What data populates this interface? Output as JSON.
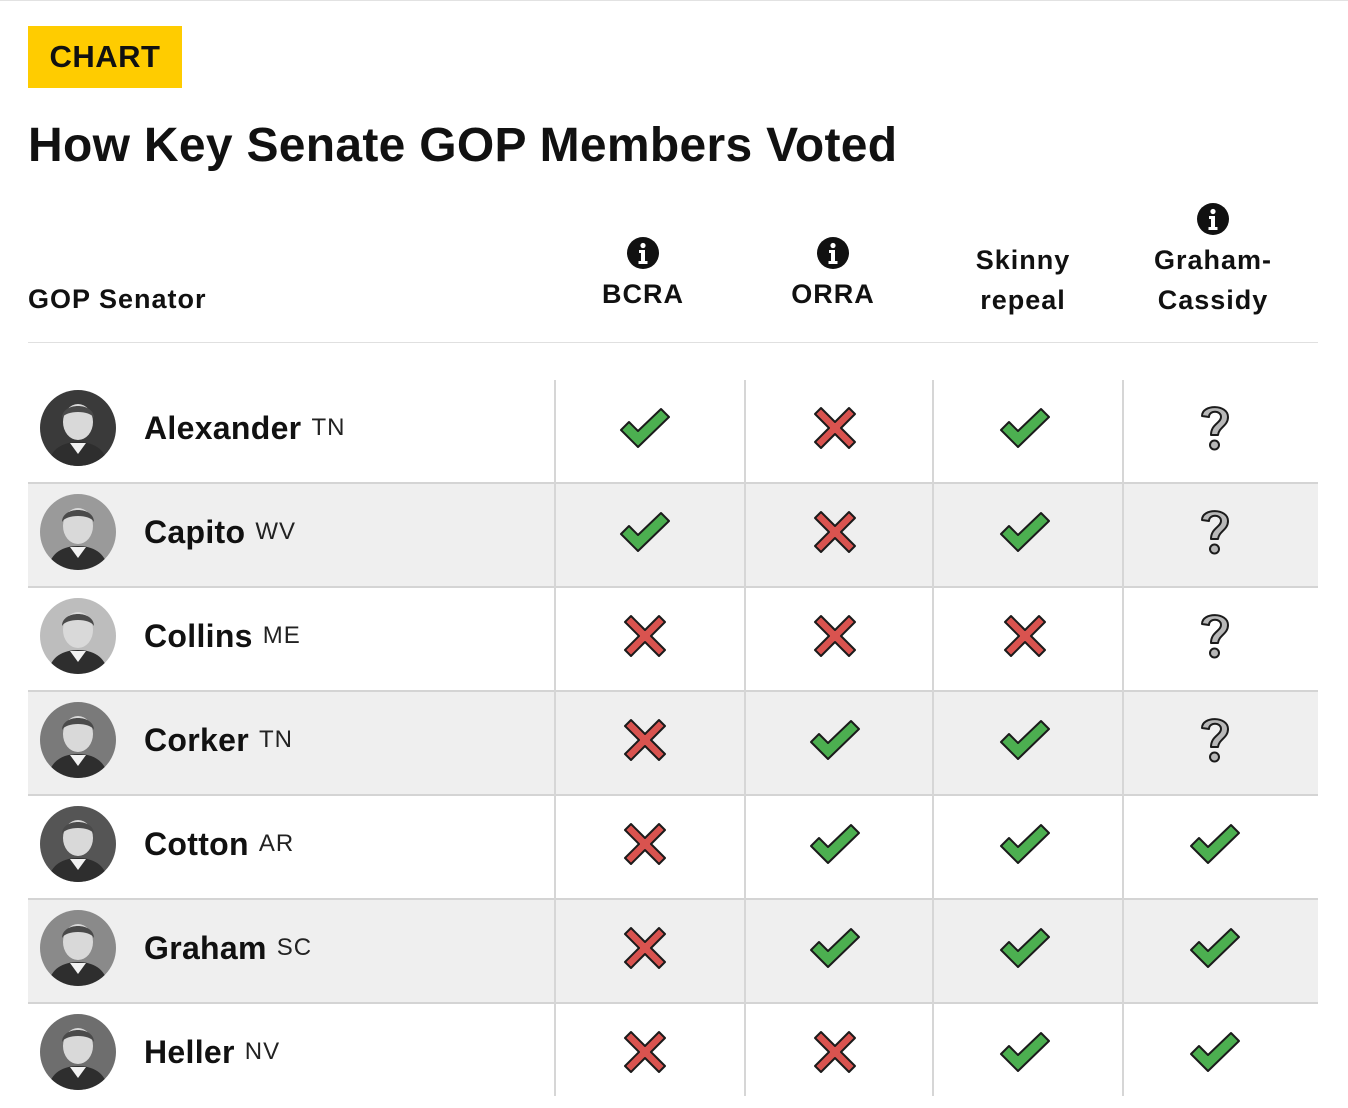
{
  "badge": "CHART",
  "title": "How Key Senate GOP Members Voted",
  "header": {
    "senator": "GOP Senator",
    "columns": [
      {
        "line1": "",
        "line2": "BCRA",
        "info": true
      },
      {
        "line1": "",
        "line2": "ORRA",
        "info": true
      },
      {
        "line1": "Skinny",
        "line2": "repeal",
        "info": false
      },
      {
        "line1": "Graham-",
        "line2": "Cassidy",
        "info": true
      }
    ]
  },
  "chart_data": {
    "type": "table",
    "title": "How Key Senate GOP Members Voted",
    "columns": [
      "GOP Senator",
      "BCRA",
      "ORRA",
      "Skinny repeal",
      "Graham-Cassidy"
    ],
    "legend_symbols": {
      "yes": "check",
      "no": "cross",
      "unknown": "question"
    },
    "rows": [
      {
        "name": "Alexander",
        "state": "TN",
        "votes": [
          "yes",
          "no",
          "yes",
          "unknown"
        ]
      },
      {
        "name": "Capito",
        "state": "WV",
        "votes": [
          "yes",
          "no",
          "yes",
          "unknown"
        ]
      },
      {
        "name": "Collins",
        "state": "ME",
        "votes": [
          "no",
          "no",
          "no",
          "unknown"
        ]
      },
      {
        "name": "Corker",
        "state": "TN",
        "votes": [
          "no",
          "yes",
          "yes",
          "unknown"
        ]
      },
      {
        "name": "Cotton",
        "state": "AR",
        "votes": [
          "no",
          "yes",
          "yes",
          "yes"
        ]
      },
      {
        "name": "Graham",
        "state": "SC",
        "votes": [
          "no",
          "yes",
          "yes",
          "yes"
        ]
      },
      {
        "name": "Heller",
        "state": "NV",
        "votes": [
          "no",
          "no",
          "yes",
          "yes"
        ]
      }
    ]
  },
  "colors": {
    "badge": "#ffcc00",
    "check": "#4caf50",
    "cross": "#d9534f",
    "question": "#b8b8b8",
    "shaded_row": "#efefef"
  },
  "icons": {
    "yes": "check-icon",
    "no": "cross-icon",
    "unknown": "question-icon",
    "info": "info-icon",
    "avatar": "senator-portrait"
  }
}
